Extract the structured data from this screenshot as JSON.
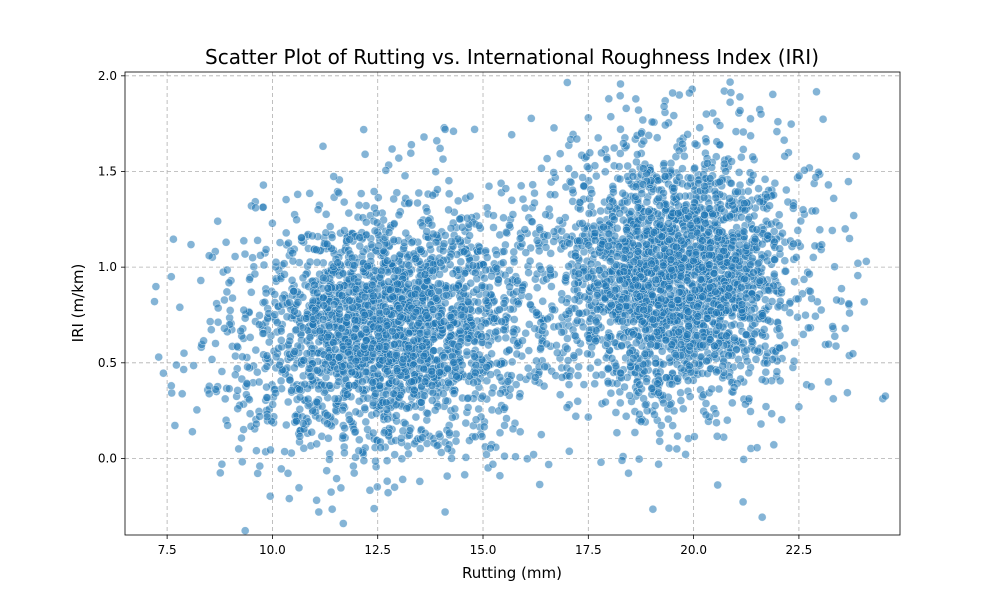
{
  "chart_data": {
    "type": "scatter",
    "title": "Scatter Plot of Rutting vs. International Roughness Index (IRI)",
    "xlabel": "Rutting (mm)",
    "ylabel": "IRI (m/km)",
    "xlim": [
      6.5,
      24.9
    ],
    "ylim": [
      -0.4,
      2.02
    ],
    "xticks": [
      7.5,
      10.0,
      12.5,
      15.0,
      17.5,
      20.0,
      22.5
    ],
    "xtick_labels": [
      "7.5",
      "10.0",
      "12.5",
      "15.0",
      "17.5",
      "20.0",
      "22.5"
    ],
    "yticks": [
      0.0,
      0.5,
      1.0,
      1.5,
      2.0
    ],
    "ytick_labels": [
      "0.0",
      "0.5",
      "1.0",
      "1.5",
      "2.0"
    ],
    "grid": true,
    "legend": "none",
    "marker_color": "#1f77b4",
    "marker_alpha": 0.55,
    "marker_edge_color": "#ffffff",
    "clusters": [
      {
        "x_mean": 12.8,
        "x_sd": 1.75,
        "y_mean": 0.68,
        "y_sd": 0.32,
        "slope": 0.028
      },
      {
        "x_mean": 19.6,
        "x_sd": 1.45,
        "y_mean": 0.95,
        "y_sd": 0.34,
        "slope": 0.0
      }
    ],
    "points": [
      [
        7.2,
        0.82
      ],
      [
        7.3,
        0.53
      ],
      [
        7.6,
        0.95
      ],
      [
        7.6,
        0.38
      ],
      [
        7.8,
        0.79
      ],
      [
        7.9,
        0.55
      ],
      [
        8.1,
        0.14
      ],
      [
        8.3,
        0.93
      ],
      [
        8.5,
        1.06
      ],
      [
        8.7,
        1.24
      ],
      [
        8.8,
        -0.03
      ],
      [
        8.9,
        1.13
      ],
      [
        9.2,
        0.05
      ],
      [
        9.5,
        1.32
      ],
      [
        9.6,
        1.31
      ],
      [
        9.7,
        -0.04
      ],
      [
        10.4,
        -0.21
      ],
      [
        10.6,
        1.38
      ],
      [
        11.1,
        -0.28
      ],
      [
        12.2,
        1.59
      ],
      [
        13.0,
        1.57
      ],
      [
        13.3,
        1.64
      ],
      [
        13.6,
        1.68
      ],
      [
        14.1,
        1.72
      ],
      [
        14.3,
        1.71
      ],
      [
        14.1,
        -0.28
      ],
      [
        14.8,
        1.72
      ],
      [
        12.9,
        -0.15
      ],
      [
        13.5,
        -0.12
      ],
      [
        15.4,
        -0.09
      ],
      [
        17.5,
        1.78
      ],
      [
        18.4,
        1.83
      ],
      [
        19.3,
        1.84
      ],
      [
        19.5,
        1.91
      ],
      [
        19.9,
        1.91
      ],
      [
        20.3,
        1.8
      ],
      [
        21.1,
        1.89
      ],
      [
        21.6,
        1.8
      ],
      [
        22.0,
        1.76
      ],
      [
        17.8,
        -0.02
      ],
      [
        18.3,
        -0.01
      ],
      [
        19.6,
        0.05
      ],
      [
        20.8,
        0.2
      ],
      [
        21.6,
        0.18
      ],
      [
        22.5,
        0.27
      ],
      [
        23.2,
        0.4
      ],
      [
        23.3,
        0.69
      ],
      [
        23.6,
        0.68
      ],
      [
        23.7,
        0.76
      ],
      [
        23.6,
        1.2
      ],
      [
        23.7,
        1.15
      ],
      [
        23.8,
        1.27
      ],
      [
        23.9,
        1.02
      ],
      [
        24.1,
        1.03
      ],
      [
        23.2,
        1.43
      ],
      [
        22.9,
        1.47
      ],
      [
        22.6,
        1.3
      ]
    ]
  }
}
